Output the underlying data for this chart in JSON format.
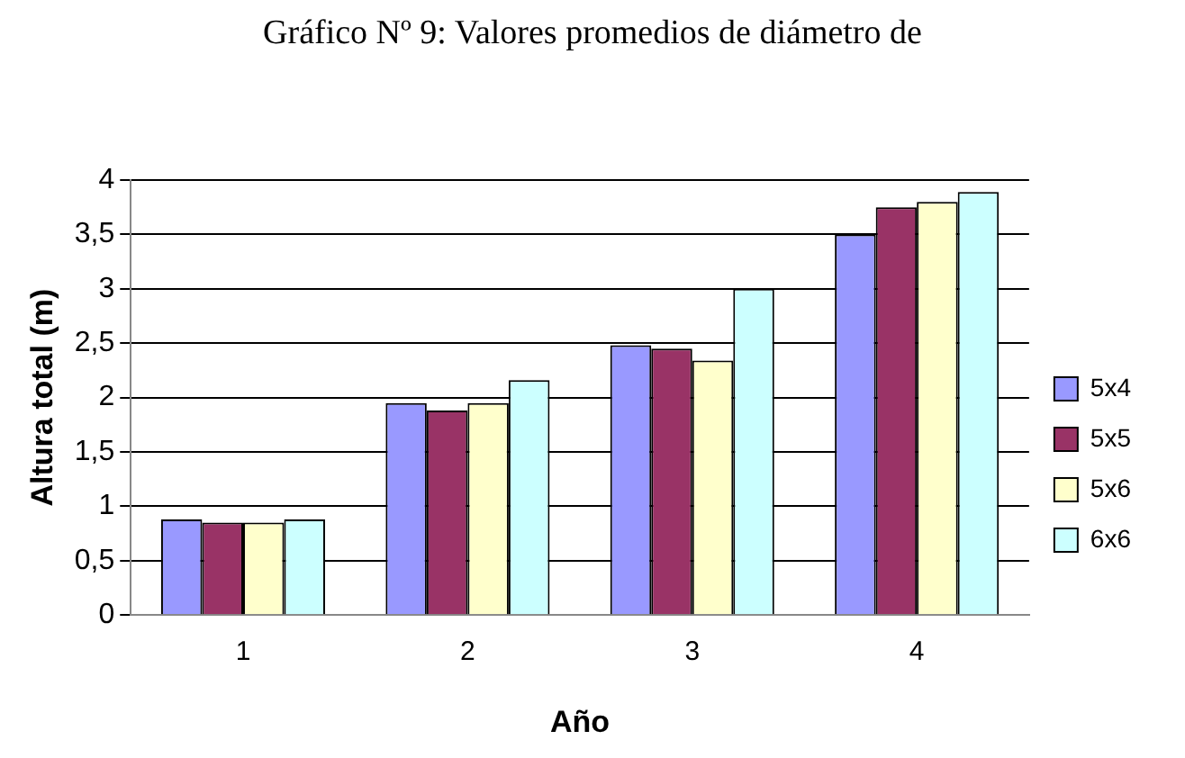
{
  "chart_data": {
    "type": "bar",
    "title": "Gráfico Nº 9: Valores promedios de diámetro de",
    "xlabel": "Año",
    "ylabel": "Altura total (m)",
    "categories": [
      "1",
      "2",
      "3",
      "4"
    ],
    "series": [
      {
        "name": "5x4",
        "color": "#9999ff",
        "values": [
          0.88,
          1.95,
          2.48,
          3.5
        ]
      },
      {
        "name": "5x5",
        "color": "#993366",
        "values": [
          0.85,
          1.88,
          2.45,
          3.75
        ]
      },
      {
        "name": "5x6",
        "color": "#ffffcc",
        "values": [
          0.85,
          1.95,
          2.34,
          3.8
        ]
      },
      {
        "name": "6x6",
        "color": "#ccffff",
        "values": [
          0.88,
          2.16,
          3.0,
          3.89
        ]
      }
    ],
    "ylim": [
      0,
      4
    ],
    "yticks": [
      {
        "value": 0,
        "label": "0"
      },
      {
        "value": 0.5,
        "label": "0,5"
      },
      {
        "value": 1,
        "label": "1"
      },
      {
        "value": 1.5,
        "label": "1,5"
      },
      {
        "value": 2,
        "label": "2"
      },
      {
        "value": 2.5,
        "label": "2,5"
      },
      {
        "value": 3,
        "label": "3"
      },
      {
        "value": 3.5,
        "label": "3,5"
      },
      {
        "value": 4,
        "label": "4"
      }
    ],
    "grid": "y",
    "legend": "right"
  }
}
